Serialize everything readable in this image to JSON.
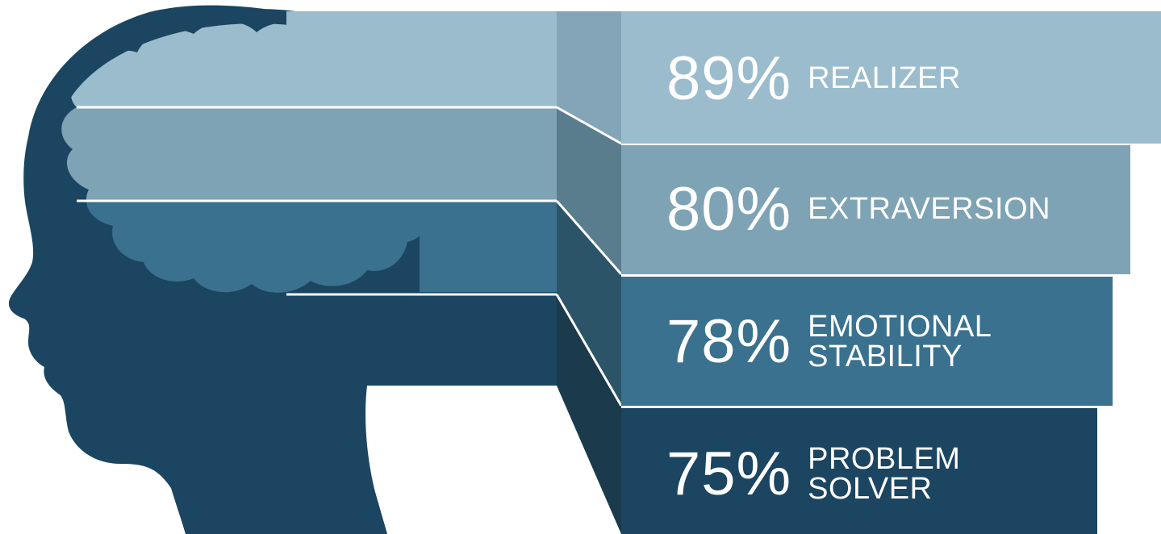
{
  "colors": {
    "background": "#ffffff",
    "silhouette": "#1b4560",
    "tier_1": "#9bbccd",
    "tier_2": "#7ea3b5",
    "tier_3": "#3a718e",
    "tier_4": "#1b4560",
    "side_1": "#84a5b7",
    "side_2": "#5a7d8e",
    "side_3": "#2c5468",
    "side_4": "#1b3a4c",
    "text": "#ffffff"
  },
  "items": [
    {
      "percent": "89%",
      "label": "REALIZER",
      "value": 89
    },
    {
      "percent": "80%",
      "label": "EXTRAVERSION",
      "value": 80
    },
    {
      "percent": "78%",
      "label": "EMOTIONAL\nSTABILITY",
      "value": 78
    },
    {
      "percent": "75%",
      "label": "PROBLEM\nSOLVER",
      "value": 75
    }
  ]
}
